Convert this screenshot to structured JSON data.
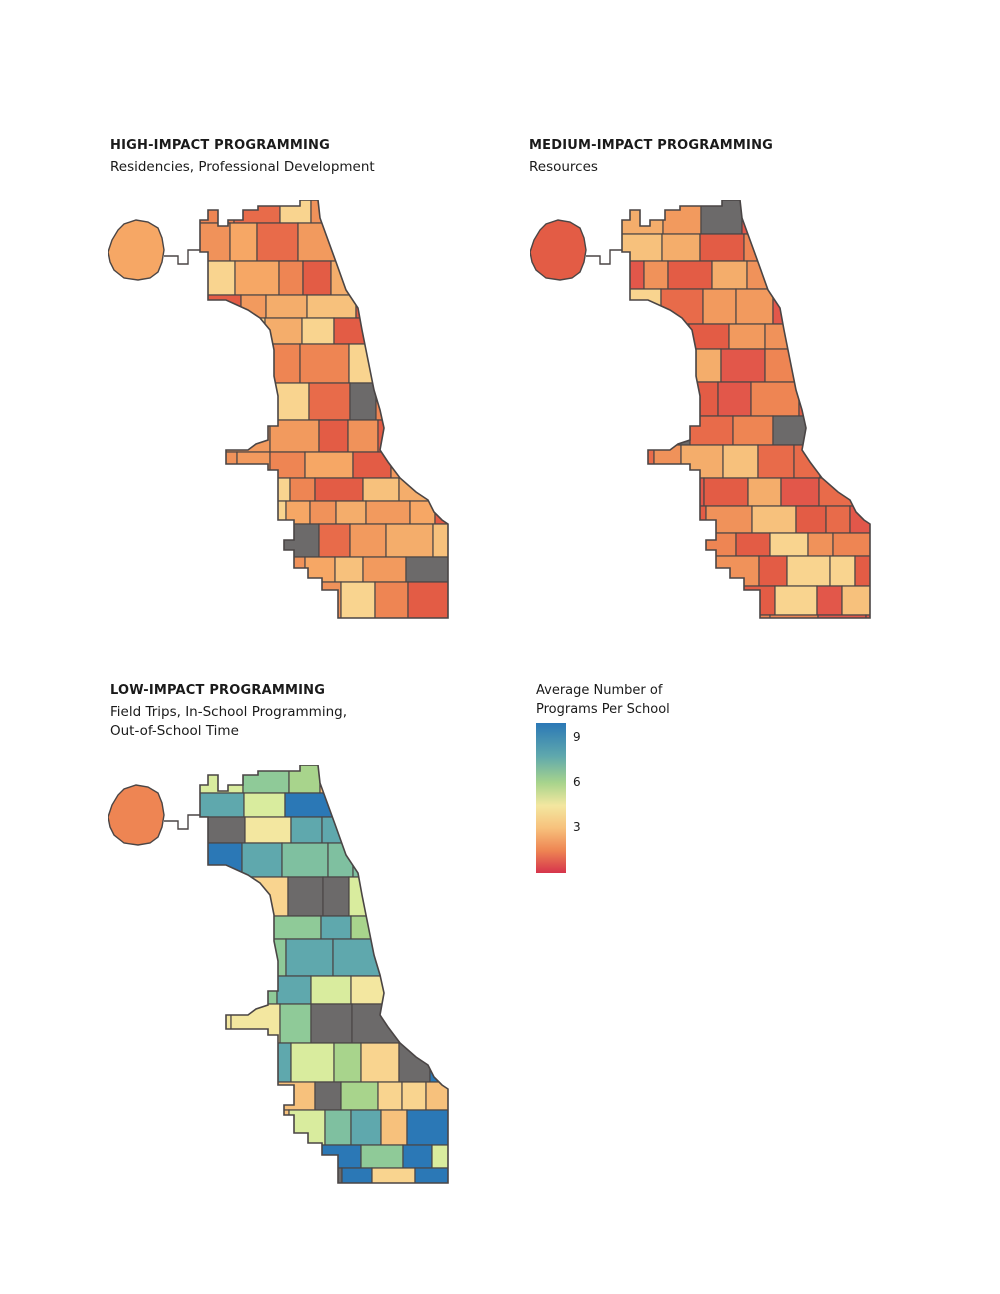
{
  "panels": [
    {
      "title": "HIGH-IMPACT PROGRAMMING",
      "subtitle_lines": [
        "Residencies, Professional Development"
      ]
    },
    {
      "title": "MEDIUM-IMPACT PROGRAMMING",
      "subtitle_lines": [
        "Resources"
      ]
    },
    {
      "title": "LOW-IMPACT PROGRAMMING",
      "subtitle_lines": [
        "Field Trips, In-School Programming,",
        "Out-of-School Time"
      ]
    }
  ],
  "legend": {
    "title_lines": [
      "Average Number of",
      "Programs Per School"
    ],
    "ticks": [
      {
        "label": "9",
        "value": 9
      },
      {
        "label": "6",
        "value": 6
      },
      {
        "label": "3",
        "value": 3
      }
    ],
    "range": [
      0,
      10
    ],
    "colors": [
      "#2b78b6",
      "#5fa8ad",
      "#a8d48c",
      "#f3e7a0",
      "#f7c17c",
      "#ee8553",
      "#d6344c"
    ]
  },
  "colors": {
    "border": "#4a4545",
    "no_data": "#6c6a6a"
  }
}
